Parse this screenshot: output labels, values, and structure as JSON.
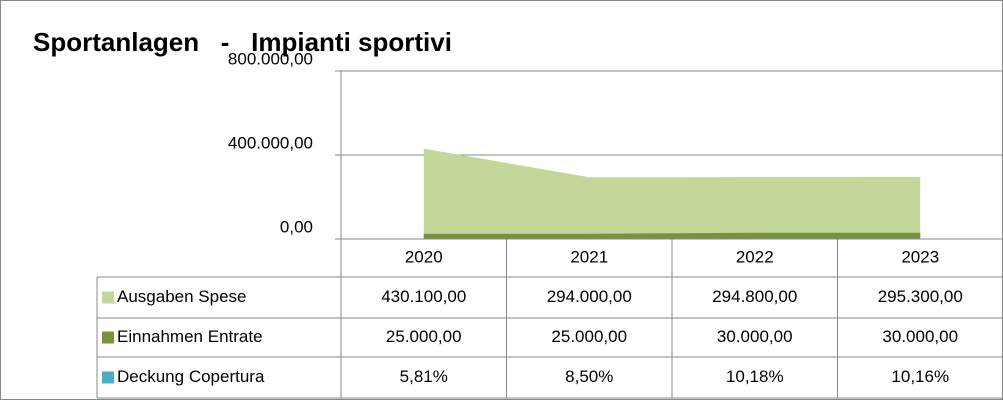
{
  "chart_data": {
    "type": "area",
    "title": "Sportanlagen   -   Impianti sportivi",
    "categories": [
      "2020",
      "2021",
      "2022",
      "2023"
    ],
    "series": [
      {
        "name": "Ausgaben Spese",
        "color": "#c4d79b",
        "values": [
          430100,
          294000,
          294800,
          295300
        ],
        "value_labels": [
          "430.100,00",
          "294.000,00",
          "294.800,00",
          "295.300,00"
        ]
      },
      {
        "name": "Einnahmen Entrate",
        "color": "#77933c",
        "values": [
          25000,
          25000,
          30000,
          30000
        ],
        "value_labels": [
          "25.000,00",
          "25.000,00",
          "30.000,00",
          "30.000,00"
        ]
      },
      {
        "name": "Deckung Copertura",
        "color": "#4bacc6",
        "values": [
          5.81,
          8.5,
          10.18,
          10.16
        ],
        "value_labels": [
          "5,81%",
          "8,50%",
          "10,18%",
          "10,16%"
        ]
      }
    ],
    "ylim": [
      0,
      800000
    ],
    "yticks": [
      {
        "value": 0,
        "label": "0,00"
      },
      {
        "value": 400000,
        "label": "400.000,00"
      },
      {
        "value": 800000,
        "label": "800.000,00"
      }
    ],
    "grid": true
  }
}
